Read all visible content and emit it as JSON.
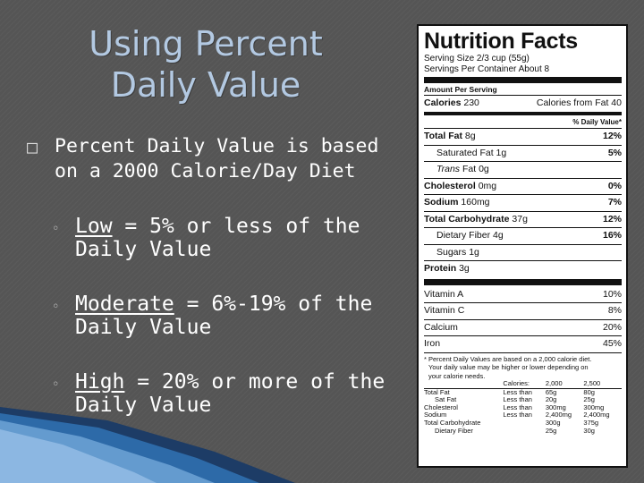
{
  "slide": {
    "title_line1": "Using Percent",
    "title_line2": "Daily Value",
    "main_bullet_marker": "□",
    "main_bullet_line1": "Percent Daily Value is based",
    "main_bullet_line2": "on a 2000 Calorie/Day Diet",
    "sub_marker": "◦",
    "sub1_term": "Low",
    "sub1_rest": " = 5% or less of the",
    "sub1_line2": "Daily Value",
    "sub2_term": "Moderate",
    "sub2_rest": " = 6%-19% of the",
    "sub2_line2": "Daily Value",
    "sub3_term": "High",
    "sub3_rest": " = 20% or more of the",
    "sub3_line2": "Daily Value"
  },
  "label": {
    "title": "Nutrition Facts",
    "serving_size": "Serving Size 2/3 cup (55g)",
    "servings_per_container": "Servings Per Container About 8",
    "amount_per_serving": "Amount Per Serving",
    "calories_label": "Calories",
    "calories_value": "230",
    "calories_from_fat": "Calories from Fat 40",
    "daily_value_header": "% Daily Value*",
    "rows": [
      {
        "name": "Total Fat",
        "amount": "8g",
        "dv": "12%"
      },
      {
        "name": "Saturated Fat",
        "amount": "1g",
        "dv": "5%"
      },
      {
        "name": "Trans",
        "amount": "Fat 0g",
        "dv": ""
      },
      {
        "name": "Cholesterol",
        "amount": "0mg",
        "dv": "0%"
      },
      {
        "name": "Sodium",
        "amount": "160mg",
        "dv": "7%"
      },
      {
        "name": "Total Carbohydrate",
        "amount": "37g",
        "dv": "12%"
      },
      {
        "name": "Dietary Fiber",
        "amount": "4g",
        "dv": "16%"
      },
      {
        "name": "Sugars",
        "amount": "1g",
        "dv": ""
      },
      {
        "name": "Protein",
        "amount": "3g",
        "dv": ""
      }
    ],
    "vitamins": [
      {
        "name": "Vitamin A",
        "dv": "10%"
      },
      {
        "name": "Vitamin C",
        "dv": "8%"
      },
      {
        "name": "Calcium",
        "dv": "20%"
      },
      {
        "name": "Iron",
        "dv": "45%"
      }
    ],
    "footnote_line1": "* Percent Daily Values are based on a 2,000 calorie diet.",
    "footnote_line2": "Your daily value may be higher or lower depending on",
    "footnote_line3": "your calorie needs.",
    "table_head": [
      "Calories:",
      "2,000",
      "2,500"
    ],
    "table_rows": [
      [
        "Total Fat",
        "Less than",
        "65g",
        "80g"
      ],
      [
        "Sat Fat",
        "Less than",
        "20g",
        "25g"
      ],
      [
        "Cholesterol",
        "Less than",
        "300mg",
        "300mg"
      ],
      [
        "Sodium",
        "Less than",
        "2,400mg",
        "2,400mg"
      ],
      [
        "Total Carbohydrate",
        "",
        "300g",
        "375g"
      ],
      [
        "Dietary Fiber",
        "",
        "25g",
        "30g"
      ]
    ]
  }
}
